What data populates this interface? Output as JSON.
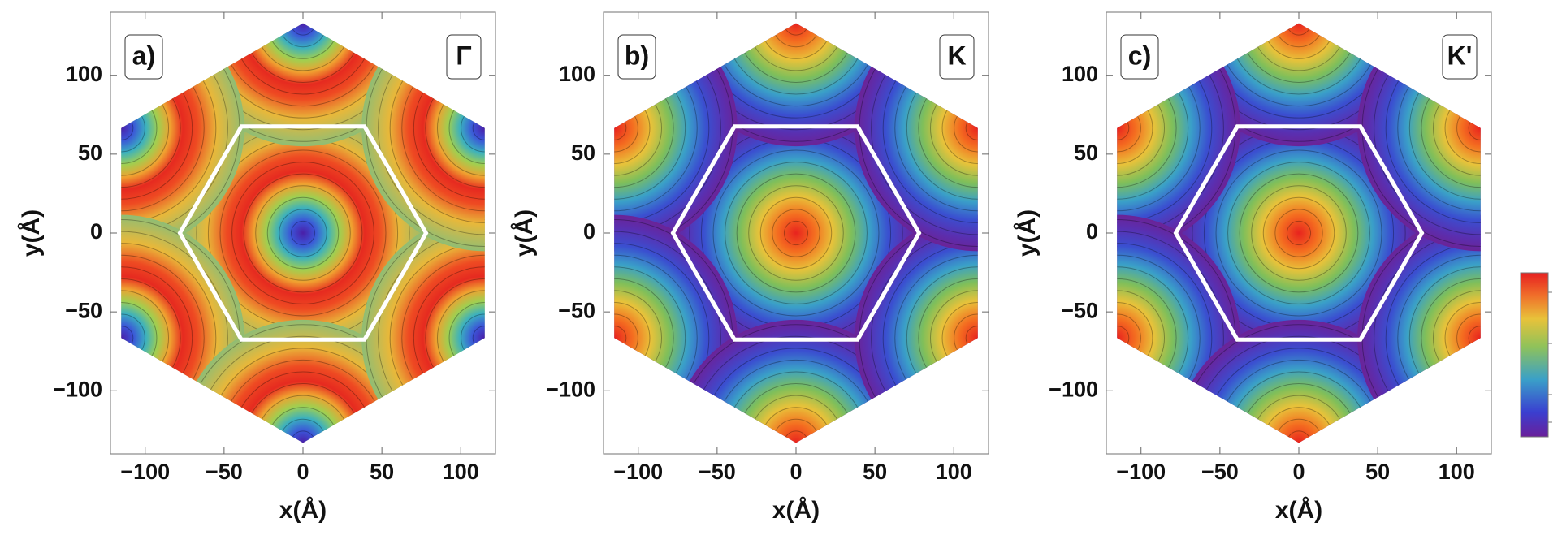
{
  "chart_data": [
    {
      "type": "contour",
      "panel_label": "a)",
      "point_label": "Γ",
      "x_label": "x(Å)",
      "y_label": "y(Å)",
      "xlim": [
        -122,
        122
      ],
      "ylim": [
        -140,
        140
      ],
      "xticks": [
        {
          "value": -100,
          "label": "−100"
        },
        {
          "value": -50,
          "label": "−50"
        },
        0,
        50,
        100
      ],
      "yticks": [
        {
          "value": -100,
          "label": "−100"
        },
        {
          "value": -50,
          "label": "−50"
        },
        0,
        50,
        100
      ]
    },
    {
      "type": "contour",
      "panel_label": "b)",
      "point_label": "K",
      "x_label": "x(Å)",
      "y_label": "y(Å)",
      "xlim": [
        -122,
        122
      ],
      "ylim": [
        -140,
        140
      ],
      "xticks": [
        {
          "value": -100,
          "label": "−100"
        },
        {
          "value": -50,
          "label": "−50"
        },
        0,
        50,
        100
      ],
      "yticks": [
        {
          "value": -100,
          "label": "−100"
        },
        {
          "value": -50,
          "label": "−50"
        },
        0,
        50,
        100
      ]
    },
    {
      "type": "contour",
      "panel_label": "c)",
      "point_label": "K'",
      "x_label": "x(Å)",
      "y_label": "y(Å)",
      "xlim": [
        -122,
        122
      ],
      "ylim": [
        -140,
        140
      ],
      "xticks": [
        {
          "value": -100,
          "label": "−100"
        },
        {
          "value": -50,
          "label": "−50"
        },
        0,
        50,
        100
      ],
      "yticks": [
        {
          "value": -100,
          "label": "−100"
        },
        {
          "value": -50,
          "label": "−50"
        },
        0,
        50,
        100
      ]
    }
  ]
}
